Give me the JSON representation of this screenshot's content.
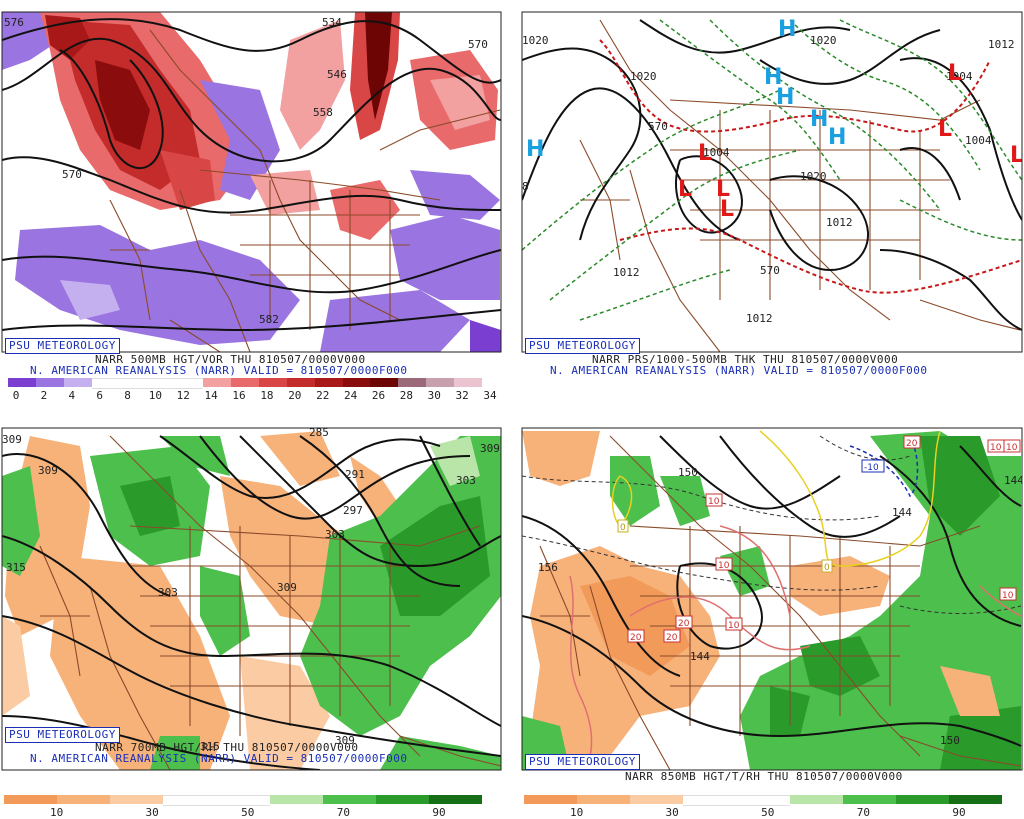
{
  "panels": {
    "p500": {
      "badge": "PSU METEOROLOGY",
      "title": "NARR 500MB HGT/VOR THU 810507/0000V000",
      "subtitle": "N. AMERICAN REANALYSIS (NARR) VALID = 810507/0000F000",
      "contour_labels": [
        "576",
        "534",
        "570",
        "546",
        "558",
        "570",
        "582"
      ],
      "colorbar": {
        "colors": [
          "#7a3fd1",
          "#9a74e0",
          "#c4b0ee",
          "#ffffff",
          "#ffffff",
          "#ffffff",
          "#ffffff",
          "#f2a0a0",
          "#e96a6a",
          "#d84646",
          "#c42b2b",
          "#a81818",
          "#8a0c0c",
          "#6e0505",
          "#9a6a78",
          "#c6a0ad",
          "#ecc4cf"
        ],
        "labels": [
          "0",
          "2",
          "4",
          "6",
          "8",
          "10",
          "12",
          "14",
          "16",
          "18",
          "20",
          "22",
          "24",
          "26",
          "28",
          "30",
          "32",
          "34"
        ]
      }
    },
    "pthk": {
      "badge": "PSU METEOROLOGY",
      "title": "NARR PRS/1000-500MB THK THU 810507/0000V000",
      "subtitle": "N. AMERICAN REANALYSIS (NARR) VALID = 810507/0000F000",
      "contour_labels": [
        "1020",
        "1020",
        "1020",
        "1004",
        "1020",
        "1012",
        "1012",
        "1012",
        "1004",
        "1012",
        "1004",
        "570",
        "570",
        "8",
        "1020"
      ],
      "symbols": {
        "high": "H",
        "low": "L"
      }
    },
    "p700": {
      "badge": "PSU METEOROLOGY",
      "title": "NARR 700MB HGT/RH THU 810507/0000V000",
      "subtitle": "N. AMERICAN REANALYSIS (NARR) VALID = 810507/0000F000",
      "contour_labels": [
        "309",
        "309",
        "285",
        "291",
        "297",
        "303",
        "309",
        "303",
        "315",
        "309",
        "315",
        "309",
        "303"
      ],
      "colorbar": {
        "colors": [
          "#f29a5a",
          "#f7b27a",
          "#fbcca3",
          "#ffffff",
          "#ffffff",
          "#b9e6a8",
          "#4cbf4c",
          "#2a9a2a",
          "#166e16"
        ],
        "labels": [
          "10",
          "30",
          "50",
          "70",
          "90"
        ]
      }
    },
    "p850": {
      "badge": "PSU METEOROLOGY",
      "title": "NARR 850MB HGT/T/RH THU 810507/0000V000",
      "subtitle": "",
      "contour_labels": [
        "150",
        "156",
        "144",
        "144",
        "150",
        "144"
      ],
      "temp_labels": [
        "10",
        "10",
        "10",
        "20",
        "20",
        "20",
        "0",
        "0",
        "-10",
        "10",
        "10",
        "10",
        "20"
      ],
      "colorbar": {
        "colors": [
          "#f29a5a",
          "#f7b27a",
          "#fbcca3",
          "#ffffff",
          "#ffffff",
          "#b9e6a8",
          "#4cbf4c",
          "#2a9a2a",
          "#166e16"
        ],
        "labels": [
          "10",
          "30",
          "50",
          "70",
          "90"
        ]
      }
    }
  }
}
